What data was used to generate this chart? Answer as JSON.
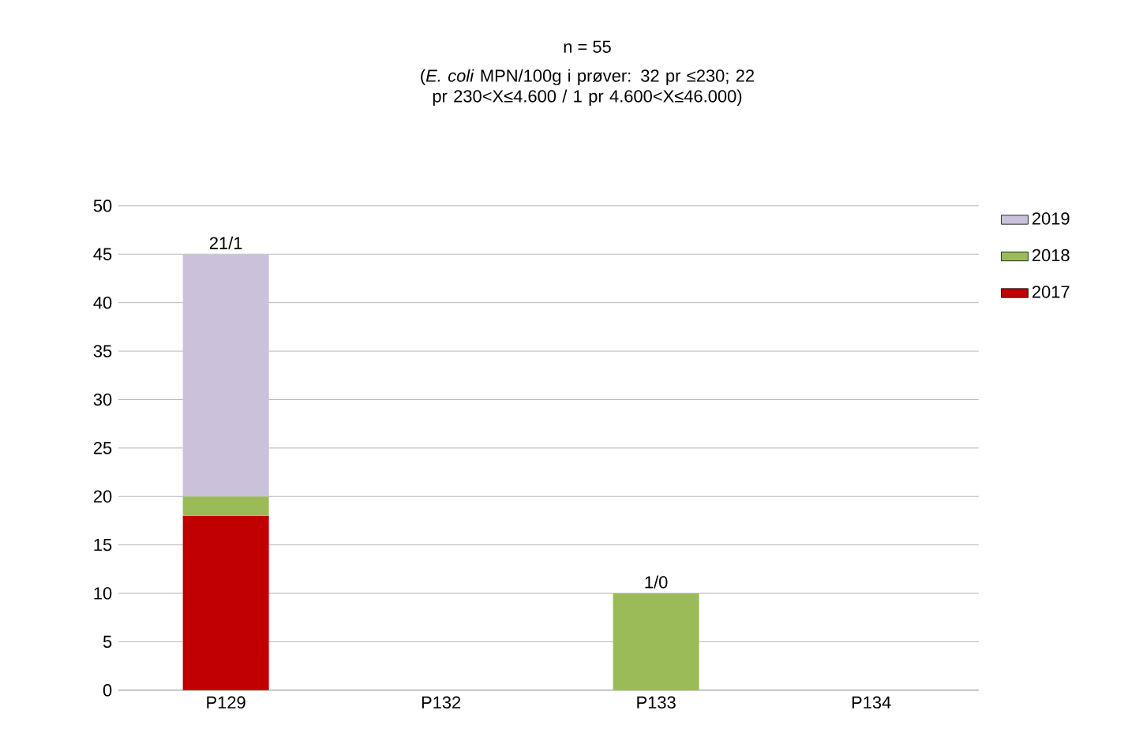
{
  "chart_data": {
    "type": "bar",
    "stacked": true,
    "title": "n = 55",
    "subtitle": "(*E. coli* MPN/100g i prøver: 32 pr ≤230; 22 pr 230<X≤4.600 / 1 pr 4.600<X≤46.000)",
    "categories": [
      "P129",
      "P132",
      "P133",
      "P134"
    ],
    "series": [
      {
        "name": "2017",
        "color": "#c00000",
        "values": [
          18,
          null,
          null,
          null
        ]
      },
      {
        "name": "2018",
        "color": "#9bbb59",
        "values": [
          2,
          null,
          10,
          null
        ]
      },
      {
        "name": "2019",
        "color": "#ccc1da",
        "values": [
          25,
          null,
          null,
          null
        ]
      }
    ],
    "totals": [
      "21/1",
      null,
      "1/0",
      null
    ],
    "ylim": [
      0,
      50
    ],
    "yticks": [
      0,
      5,
      10,
      15,
      20,
      25,
      30,
      35,
      40,
      45,
      50
    ],
    "grid": "y",
    "legend": "right"
  }
}
